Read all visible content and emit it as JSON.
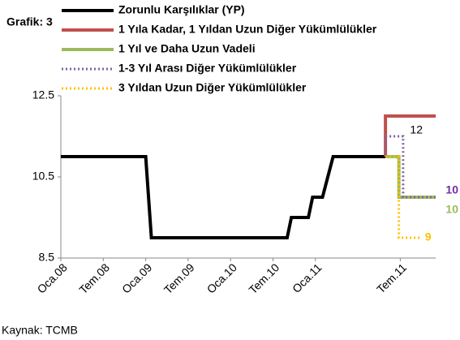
{
  "chart_data": {
    "type": "line",
    "title": "Grafik: 3",
    "source": "Kaynak: TCMB",
    "xlim": [
      0,
      53
    ],
    "ylim": [
      8.5,
      12.5
    ],
    "yticks": [
      8.5,
      10.5,
      12.5
    ],
    "xticks": [
      {
        "value": 0,
        "label": "Oca.08"
      },
      {
        "value": 6,
        "label": "Tem.08"
      },
      {
        "value": 12,
        "label": "Oca.09"
      },
      {
        "value": 18,
        "label": "Tem.09"
      },
      {
        "value": 24,
        "label": "Oca.10"
      },
      {
        "value": 30,
        "label": "Tem.10"
      },
      {
        "value": 36,
        "label": "Oca.11"
      },
      {
        "value": 48,
        "label": "Tem.11"
      }
    ],
    "grid": false,
    "series": [
      {
        "name": "Zorunlu Karşılıklar (YP)",
        "color": "#000000",
        "style": "solid",
        "x": [
          0,
          12,
          12.8,
          32,
          32.6,
          35,
          35.6,
          37,
          38.5,
          45.9
        ],
        "values": [
          11,
          11,
          9,
          9,
          9.5,
          9.5,
          10,
          10,
          11,
          11
        ]
      },
      {
        "name": "1 Yıla Kadar, 1 Yıldan Uzun Diğer Yükümlülükler",
        "color": "#c0504d",
        "style": "solid",
        "label_color": "#000000",
        "x": [
          45.9,
          45.9,
          53
        ],
        "values": [
          11,
          12,
          12
        ]
      },
      {
        "name": "1 Yıl ve Daha Uzun Vadeli",
        "color": "#9bbb59",
        "style": "solid",
        "label_color": "#9bbb59",
        "x": [
          45.9,
          47.8,
          47.8,
          53
        ],
        "values": [
          11,
          11,
          10,
          10
        ]
      },
      {
        "name": "1-3 Yıl Arası Diğer Yükümlülükler",
        "color": "#8064a2",
        "style": "dotted",
        "label_color": "#7030a0",
        "x": [
          45.9,
          45.9,
          48.4,
          48.4,
          53
        ],
        "values": [
          11,
          11.5,
          11.5,
          10,
          10
        ]
      },
      {
        "name": "3 Yıldan Uzun Diğer Yükümlülükler",
        "color": "#ffc000",
        "style": "dotted",
        "label_color": "#ffc000",
        "x": [
          45.9,
          47.8,
          47.8,
          51
        ],
        "values": [
          11,
          11,
          9,
          9
        ]
      }
    ]
  }
}
